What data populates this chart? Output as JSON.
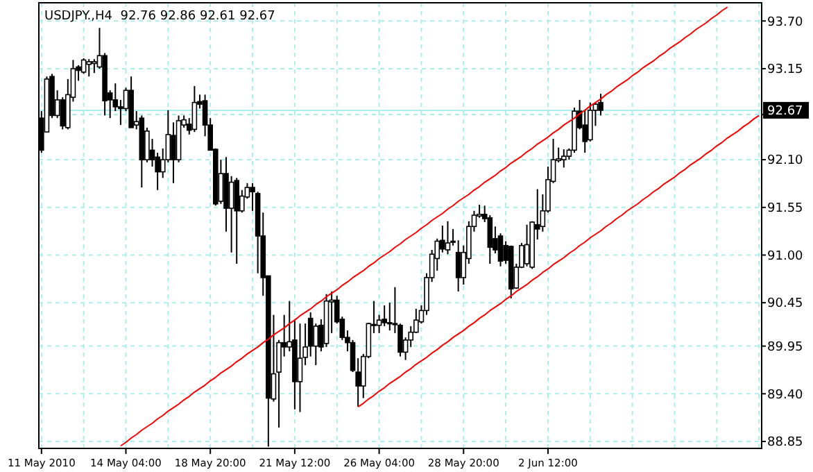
{
  "chart_data": {
    "type": "candlestick",
    "title": "USDJPY.,H4  92.76 92.86 92.61 92.67",
    "categories": [
      "11 May 2010",
      null,
      null,
      null,
      null,
      null,
      null,
      null,
      null,
      null,
      null,
      null,
      null,
      null,
      null,
      null,
      "14 May 04:00",
      null,
      null,
      null,
      null,
      null,
      null,
      null,
      null,
      null,
      null,
      null,
      null,
      null,
      null,
      null,
      "18 May 20:00",
      null,
      null,
      null,
      null,
      null,
      null,
      null,
      null,
      null,
      null,
      null,
      null,
      null,
      null,
      null,
      "21 May 12:00",
      null,
      null,
      null,
      null,
      null,
      null,
      null,
      null,
      null,
      null,
      null,
      null,
      null,
      null,
      null,
      "26 May 04:00",
      null,
      null,
      null,
      null,
      null,
      null,
      null,
      null,
      null,
      null,
      null,
      null,
      null,
      null,
      null,
      "28 May 20:00",
      null,
      null,
      null,
      null,
      null,
      null,
      null,
      null,
      null,
      null,
      null,
      null,
      null,
      null,
      null,
      "2 Jun 12:00",
      null,
      null,
      null,
      null,
      null,
      null,
      null,
      null,
      null,
      null,
      null,
      null,
      null,
      null,
      null,
      null,
      null,
      null,
      null,
      null,
      null,
      null,
      null,
      null,
      null,
      null,
      null,
      null,
      null,
      null,
      null,
      null,
      null,
      null,
      null,
      null,
      null,
      null,
      null,
      null
    ],
    "ohlc": [
      [
        92.58,
        92.66,
        92.18,
        92.21
      ],
      [
        92.42,
        93.06,
        92.42,
        93.03
      ],
      [
        93.06,
        93.09,
        92.58,
        92.61
      ],
      [
        92.61,
        92.9,
        92.58,
        92.79
      ],
      [
        92.79,
        92.82,
        92.45,
        92.49
      ],
      [
        92.47,
        93.03,
        92.45,
        92.85
      ],
      [
        92.82,
        93.25,
        92.77,
        93.15
      ],
      [
        93.17,
        93.19,
        93.01,
        93.13
      ],
      [
        93.11,
        93.27,
        93.09,
        93.25
      ],
      [
        93.2,
        93.26,
        93.06,
        93.23
      ],
      [
        93.21,
        93.26,
        93.1,
        93.23
      ],
      [
        93.17,
        93.62,
        93.15,
        93.3
      ],
      [
        93.3,
        93.33,
        92.61,
        92.78
      ],
      [
        92.87,
        92.9,
        92.58,
        92.79
      ],
      [
        92.79,
        92.98,
        92.66,
        92.71
      ],
      [
        92.71,
        92.79,
        92.5,
        92.69
      ],
      [
        92.69,
        92.93,
        92.66,
        92.9
      ],
      [
        92.9,
        93.06,
        92.47,
        92.47
      ],
      [
        92.5,
        92.66,
        92.45,
        92.54
      ],
      [
        92.58,
        92.61,
        91.78,
        92.1
      ],
      [
        92.1,
        92.47,
        92.07,
        92.43
      ],
      [
        92.21,
        92.34,
        92.02,
        92.1
      ],
      [
        92.13,
        92.18,
        91.75,
        91.96
      ],
      [
        91.96,
        92.23,
        91.89,
        92.1
      ],
      [
        92.1,
        92.67,
        92.07,
        92.39
      ],
      [
        92.38,
        92.53,
        91.83,
        92.1
      ],
      [
        92.1,
        92.61,
        92.07,
        92.55
      ],
      [
        92.5,
        92.61,
        92.47,
        92.56
      ],
      [
        92.51,
        92.58,
        92.39,
        92.44
      ],
      [
        92.45,
        92.95,
        92.42,
        92.76
      ],
      [
        92.77,
        92.85,
        92.69,
        92.74
      ],
      [
        92.78,
        92.85,
        92.37,
        92.5
      ],
      [
        92.5,
        92.58,
        92.21,
        92.21
      ],
      [
        92.22,
        92.23,
        91.57,
        91.59
      ],
      [
        91.62,
        92.1,
        91.59,
        91.94
      ],
      [
        91.94,
        92.13,
        91.27,
        91.54
      ],
      [
        91.54,
        91.91,
        91.03,
        91.84
      ],
      [
        91.86,
        91.89,
        90.9,
        91.51
      ],
      [
        91.51,
        91.75,
        91.49,
        91.68
      ],
      [
        91.67,
        91.83,
        91.65,
        91.78
      ],
      [
        91.78,
        91.83,
        91.51,
        91.73
      ],
      [
        91.71,
        91.73,
        90.79,
        91.22
      ],
      [
        91.22,
        91.49,
        90.53,
        90.74
      ],
      [
        90.76,
        90.76,
        88.79,
        89.35
      ],
      [
        89.34,
        90.31,
        89.31,
        89.63
      ],
      [
        89.65,
        90.02,
        89.01,
        89.99
      ],
      [
        89.99,
        90.31,
        89.83,
        89.94
      ],
      [
        89.94,
        90.47,
        89.89,
        90.0
      ],
      [
        90.02,
        90.26,
        89.22,
        89.54
      ],
      [
        89.54,
        90.21,
        89.19,
        89.81
      ],
      [
        89.82,
        90.21,
        89.73,
        89.94
      ],
      [
        90.27,
        90.34,
        89.83,
        89.95
      ],
      [
        89.95,
        90.21,
        89.73,
        90.18
      ],
      [
        90.19,
        90.26,
        89.89,
        89.94
      ],
      [
        89.98,
        90.55,
        89.94,
        90.47
      ],
      [
        90.46,
        90.58,
        90.1,
        90.48
      ],
      [
        90.48,
        90.53,
        90.21,
        90.23
      ],
      [
        90.26,
        90.29,
        90.02,
        90.05
      ],
      [
        90.05,
        90.13,
        89.89,
        89.99
      ],
      [
        89.99,
        90.02,
        89.65,
        89.67
      ],
      [
        89.65,
        89.81,
        89.25,
        89.49
      ],
      [
        89.49,
        89.86,
        89.35,
        89.83
      ],
      [
        89.83,
        90.22,
        89.81,
        90.21
      ],
      [
        90.19,
        90.47,
        90.1,
        90.2
      ],
      [
        90.19,
        90.31,
        90.1,
        90.25
      ],
      [
        90.26,
        90.42,
        90.18,
        90.22
      ],
      [
        90.22,
        90.45,
        90.13,
        90.21
      ],
      [
        90.21,
        90.63,
        90.1,
        90.2
      ],
      [
        90.19,
        90.21,
        89.83,
        89.88
      ],
      [
        89.88,
        90.05,
        89.79,
        90.02
      ],
      [
        90.02,
        90.18,
        89.94,
        90.11
      ],
      [
        90.11,
        90.38,
        90.1,
        90.25
      ],
      [
        90.23,
        90.42,
        90.21,
        90.36
      ],
      [
        90.36,
        90.79,
        90.31,
        90.74
      ],
      [
        90.74,
        91.06,
        90.69,
        91.01
      ],
      [
        90.96,
        91.19,
        90.82,
        91.16
      ],
      [
        91.17,
        91.34,
        91.03,
        91.07
      ],
      [
        91.06,
        91.39,
        91.01,
        91.14
      ],
      [
        91.15,
        91.3,
        91.11,
        91.16
      ],
      [
        91.03,
        91.17,
        90.58,
        90.74
      ],
      [
        90.74,
        91.11,
        90.66,
        91.03
      ],
      [
        90.96,
        91.39,
        90.9,
        91.33
      ],
      [
        91.33,
        91.51,
        91.27,
        91.46
      ],
      [
        91.45,
        91.58,
        91.43,
        91.47
      ],
      [
        91.47,
        91.57,
        91.38,
        91.42
      ],
      [
        91.43,
        91.46,
        90.9,
        91.09
      ],
      [
        91.19,
        91.33,
        91.02,
        91.06
      ],
      [
        91.22,
        91.25,
        90.87,
        90.93
      ],
      [
        91.11,
        91.16,
        90.9,
        90.94
      ],
      [
        91.1,
        91.11,
        90.5,
        90.61
      ],
      [
        90.62,
        90.9,
        90.61,
        90.86
      ],
      [
        90.86,
        91.14,
        90.85,
        91.11
      ],
      [
        90.9,
        91.35,
        90.87,
        91.12
      ],
      [
        90.86,
        91.39,
        90.84,
        91.38
      ],
      [
        91.35,
        91.76,
        91.18,
        91.3
      ],
      [
        91.33,
        91.7,
        91.27,
        91.51
      ],
      [
        91.51,
        92.02,
        91.49,
        91.87
      ],
      [
        91.85,
        92.34,
        91.83,
        92.1
      ],
      [
        92.09,
        92.24,
        92.07,
        92.11
      ],
      [
        92.1,
        92.22,
        92.01,
        92.14
      ],
      [
        92.14,
        92.23,
        92.1,
        92.21
      ],
      [
        92.21,
        92.7,
        92.18,
        92.66
      ],
      [
        92.66,
        92.79,
        92.45,
        92.47
      ],
      [
        92.5,
        92.67,
        92.18,
        92.31
      ],
      [
        92.33,
        92.76,
        92.31,
        92.67
      ],
      [
        92.67,
        92.76,
        92.49,
        92.74
      ],
      [
        92.76,
        92.86,
        92.61,
        92.67
      ],
      null,
      null,
      null,
      null,
      null,
      null,
      null,
      null,
      null,
      null,
      null,
      null,
      null,
      null,
      null,
      null,
      null,
      null,
      null,
      null,
      null,
      null,
      null,
      null,
      null,
      null,
      null,
      null,
      null,
      null
    ],
    "series": [
      {
        "type": "line",
        "color": "#ff0000",
        "values": [
          null,
          null,
          null,
          null,
          null,
          null,
          null,
          null,
          null,
          null,
          null,
          null,
          null,
          null,
          null,
          88.8,
          88.84,
          88.89,
          88.93,
          88.98,
          89.02,
          89.06,
          89.11,
          89.15,
          89.2,
          89.24,
          89.28,
          89.33,
          89.37,
          89.42,
          89.46,
          89.5,
          89.55,
          89.59,
          89.64,
          89.68,
          89.72,
          89.77,
          89.81,
          89.86,
          89.9,
          89.94,
          89.99,
          90.03,
          90.08,
          90.12,
          90.16,
          90.21,
          90.25,
          90.3,
          90.34,
          90.38,
          90.43,
          90.47,
          90.52,
          90.56,
          90.6,
          90.65,
          90.69,
          90.74,
          90.78,
          90.82,
          90.87,
          90.91,
          90.96,
          91.0,
          91.04,
          91.09,
          91.13,
          91.18,
          91.22,
          91.26,
          91.31,
          91.35,
          91.4,
          91.44,
          91.48,
          91.53,
          91.57,
          91.62,
          91.66,
          91.7,
          91.75,
          91.79,
          91.84,
          91.88,
          91.92,
          91.97,
          92.01,
          92.06,
          92.1,
          92.14,
          92.19,
          92.23,
          92.28,
          92.32,
          92.36,
          92.41,
          92.45,
          92.5,
          92.54,
          92.58,
          92.63,
          92.67,
          92.72,
          92.76,
          92.8,
          92.85,
          92.89,
          92.94,
          92.98,
          93.02,
          93.07,
          93.11,
          93.16,
          93.2,
          93.24,
          93.29,
          93.33,
          93.38,
          93.42,
          93.46,
          93.51,
          93.55,
          93.6,
          93.64,
          93.68,
          93.73,
          93.77,
          93.82,
          93.86,
          null,
          null,
          null,
          null,
          null,
          null
        ]
      },
      {
        "type": "line",
        "color": "#ff0000",
        "values": [
          null,
          null,
          null,
          null,
          null,
          null,
          null,
          null,
          null,
          null,
          null,
          null,
          null,
          null,
          null,
          null,
          null,
          null,
          null,
          null,
          null,
          null,
          null,
          null,
          null,
          null,
          null,
          null,
          null,
          null,
          null,
          null,
          null,
          null,
          null,
          null,
          null,
          null,
          null,
          null,
          null,
          null,
          null,
          null,
          null,
          null,
          null,
          null,
          null,
          null,
          null,
          null,
          null,
          null,
          null,
          null,
          null,
          null,
          null,
          null,
          89.25,
          89.29,
          89.34,
          89.38,
          89.43,
          89.47,
          89.52,
          89.56,
          89.6,
          89.65,
          89.69,
          89.74,
          89.78,
          89.82,
          89.87,
          89.91,
          89.96,
          90.0,
          90.05,
          90.09,
          90.13,
          90.18,
          90.22,
          90.27,
          90.31,
          90.36,
          90.4,
          90.44,
          90.49,
          90.53,
          90.58,
          90.62,
          90.66,
          90.71,
          90.75,
          90.8,
          90.84,
          90.89,
          90.93,
          90.97,
          91.02,
          91.06,
          91.11,
          91.15,
          91.2,
          91.24,
          91.28,
          91.33,
          91.37,
          91.42,
          91.46,
          91.51,
          91.55,
          91.59,
          91.64,
          91.68,
          91.73,
          91.77,
          91.82,
          91.86,
          91.9,
          91.95,
          91.99,
          92.04,
          92.08,
          92.12,
          92.17,
          92.21,
          92.26,
          92.3,
          92.35,
          92.39,
          92.43,
          92.48,
          92.52,
          92.57,
          92.61
        ]
      }
    ],
    "ylim": [
      88.77,
      93.91
    ],
    "yticks": [
      {
        "value": 93.7,
        "label": "93.70"
      },
      93.15,
      {
        "value": 92.62,
        "label": null
      },
      {
        "value": 92.1,
        "label": "92.10"
      },
      91.55,
      {
        "value": 91.0,
        "label": "91.00"
      },
      90.45,
      89.95,
      {
        "value": 89.4,
        "label": "89.40"
      },
      88.85
    ],
    "ref_lines": [
      {
        "axis": "y",
        "value": 92.67,
        "label": "92.67",
        "color": "#aaeeee"
      }
    ],
    "grid": true
  }
}
